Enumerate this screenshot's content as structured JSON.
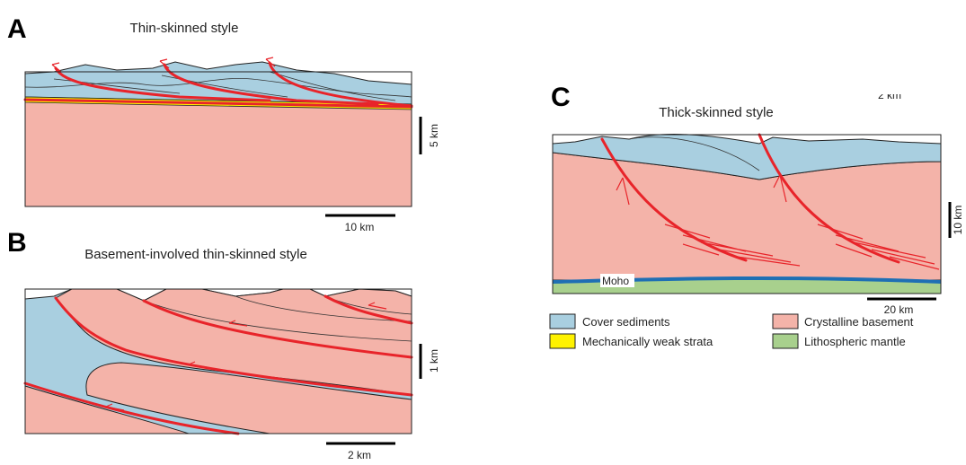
{
  "panels": [
    {
      "label": "A",
      "title": "Thin-skinned style",
      "scale_vertical": "5 km",
      "scale_horizontal": "10 km"
    },
    {
      "label": "B",
      "title": "Basement-involved thin-skinned style",
      "scale_vertical": "1 km",
      "scale_horizontal": "2 km"
    },
    {
      "label": "C",
      "title": "Thick-skinned style",
      "scale_vertical": "10 km",
      "scale_horizontal": "20 km",
      "cropped_label": "2 km",
      "moho_label": "Moho"
    }
  ],
  "legend": [
    {
      "label": "Cover sediments"
    },
    {
      "label": "Crystalline basement"
    },
    {
      "label": "Mechanically weak strata"
    },
    {
      "label": "Lithospheric mantle"
    }
  ]
}
